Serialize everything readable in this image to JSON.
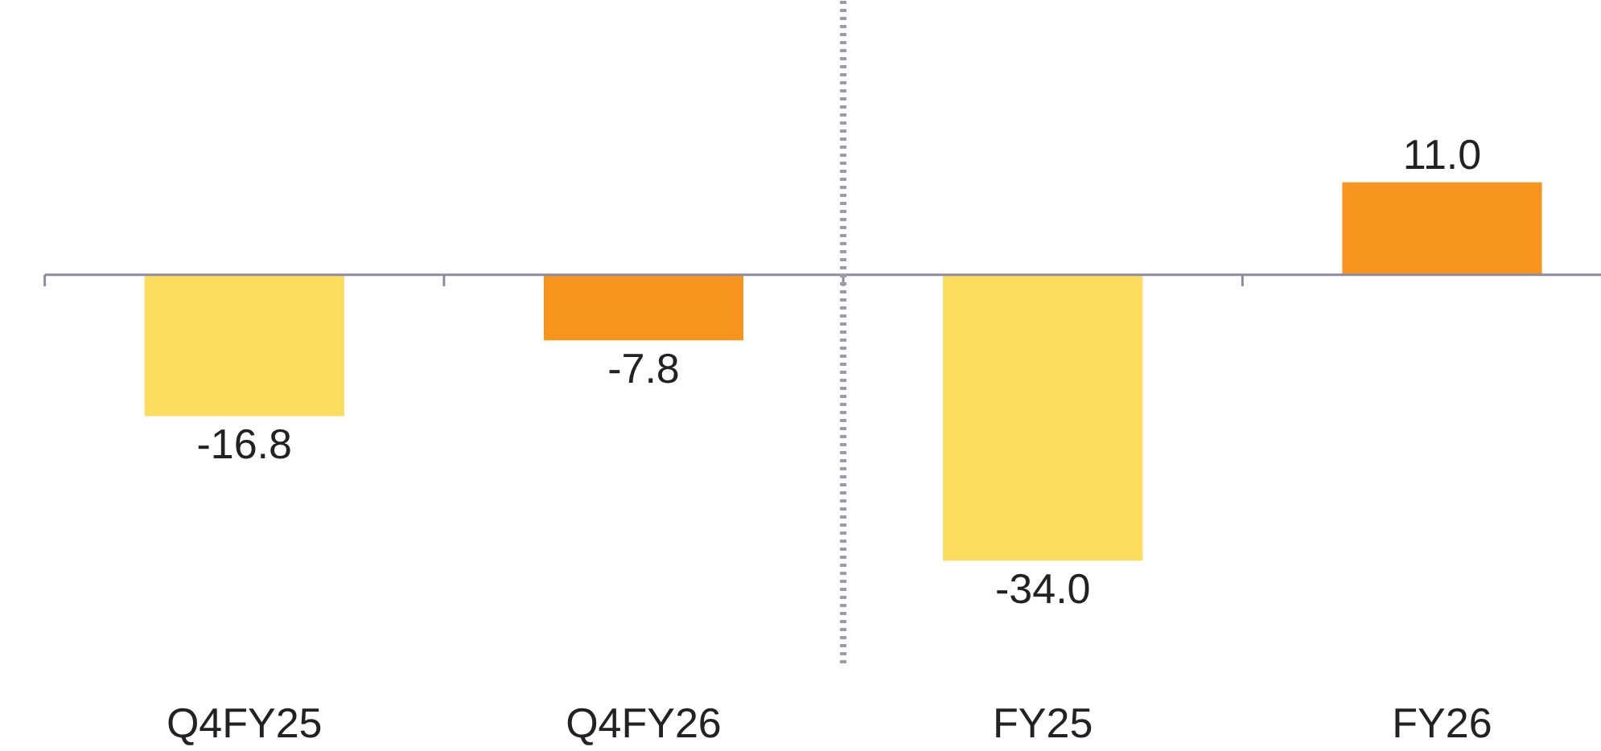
{
  "chart_data": {
    "type": "bar",
    "categories": [
      "Q4FY25",
      "Q4FY26",
      "FY25",
      "FY26"
    ],
    "values": [
      -16.8,
      -7.8,
      -34.0,
      11.0
    ],
    "colors": [
      "#fbdc5c",
      "#f7941d",
      "#fbdc5c",
      "#f7941d"
    ],
    "value_labels": [
      "-16.8",
      "-7.8",
      "-34.0",
      "11.0"
    ],
    "grid": false
  }
}
